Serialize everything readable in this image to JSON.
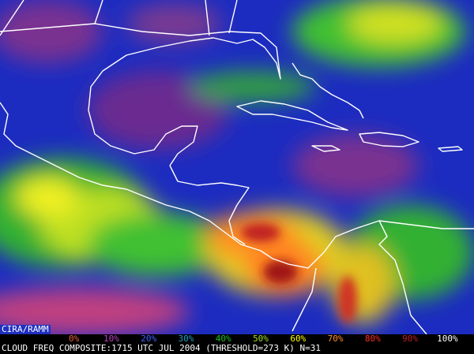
{
  "source": "CIRA/RAMM",
  "caption": "CLOUD FREQ COMPOSITE:1715 UTC JUL 2004 (THRESHOLD=273 K) N=31",
  "legend": [
    {
      "label": "0%",
      "color": "#e8603a"
    },
    {
      "label": "10%",
      "color": "#c040c0"
    },
    {
      "label": "20%",
      "color": "#4060ff"
    },
    {
      "label": "30%",
      "color": "#20a0c0"
    },
    {
      "label": "40%",
      "color": "#20c020"
    },
    {
      "label": "50%",
      "color": "#a0e020"
    },
    {
      "label": "60%",
      "color": "#ffff00"
    },
    {
      "label": "70%",
      "color": "#ff9020"
    },
    {
      "label": "80%",
      "color": "#ff3020"
    },
    {
      "label": "90%",
      "color": "#c02020"
    },
    {
      "label": "100%",
      "color": "#ffffff"
    }
  ]
}
